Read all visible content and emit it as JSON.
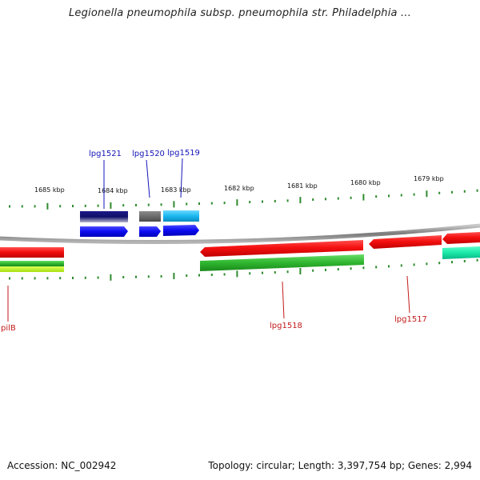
{
  "title": "Legionella pneumophila subsp. pneumophila str. Philadelphia ...",
  "footer": {
    "accession": "Accession: NC_002942",
    "stats": "Topology: circular; Length: 3,397,754 bp; Genes: 2,994"
  },
  "scale_labels": [
    "1685 kbp",
    "1684 kbp",
    "1683 kbp",
    "1682 kbp",
    "1681 kbp",
    "1680 kbp",
    "1679 kbp"
  ],
  "gene_labels_top": [
    "lpg1521",
    "lpg1520",
    "lpg1519"
  ],
  "gene_labels_bottom": [
    "pilB",
    "lpg1518",
    "lpg1517"
  ],
  "colors": {
    "backbone": "#8a8a8a",
    "tick": "#2e8b2e",
    "forward_cds": "#1010ee",
    "reverse_cds": "#ee1010",
    "top_label": "#1515b8",
    "bottom_label": "#c41a1a"
  }
}
